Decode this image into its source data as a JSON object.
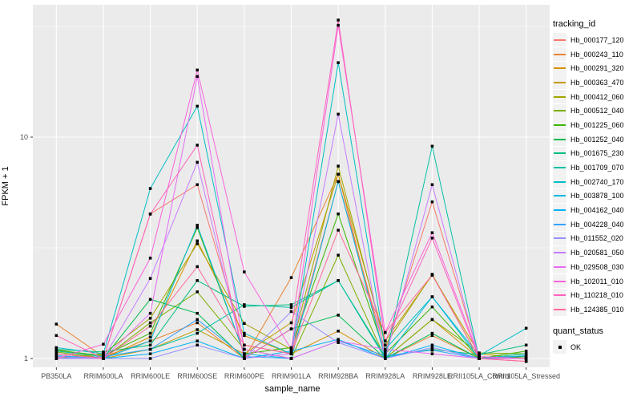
{
  "figure": {
    "y_axis": {
      "label": "FPKM + 1",
      "tick_labels": [
        "1",
        "10"
      ]
    },
    "x_axis": {
      "label": "sample_name"
    },
    "legend": {
      "title": "tracking_id"
    },
    "quant_status": {
      "title": "quant_status",
      "items": [
        {
          "label": "OK"
        }
      ]
    },
    "colors": {
      "panel_bg": "#EBEBEB",
      "grid": "#FFFFFF",
      "tick_text": "#4D4D4D",
      "tick_mark": "#333333",
      "point": "#000000",
      "legend_key_bg": "#F2F2F2"
    }
  },
  "chart_data": {
    "type": "line",
    "title": "",
    "xlabel": "sample_name",
    "ylabel": "FPKM + 1",
    "y_scale": "log10",
    "ylim": [
      0.91,
      39.5
    ],
    "y_major_ticks": [
      1,
      10
    ],
    "y_minor_ticks": [
      3.1623,
      31.623
    ],
    "grid": true,
    "legend_position": "right",
    "point_style": {
      "shape": "square",
      "color": "#000000",
      "size": 3.5,
      "meaning": "quant_status OK"
    },
    "x_categories": [
      "PB350LA",
      "RRIM600LA",
      "RRIM600LE",
      "RRIM600SE",
      "RRIM600PE",
      "RRIM901LA",
      "RRIM928BA",
      "RRIM928LA",
      "RRIM928LE",
      "RRII105LA_Control",
      "RRII105LA_Stressed"
    ],
    "series": [
      {
        "name": "Hb_000177_120",
        "color": "#F8766D",
        "values": [
          1.05,
          1.0,
          4.5,
          6.1,
          1.15,
          1.05,
          6.3,
          1.08,
          5.1,
          1.02,
          1.0
        ]
      },
      {
        "name": "Hb_000243_110",
        "color": "#EA8331",
        "values": [
          1.43,
          1.02,
          1.2,
          1.45,
          1.0,
          2.32,
          6.8,
          1.0,
          1.27,
          1.0,
          1.0
        ]
      },
      {
        "name": "Hb_000291_320",
        "color": "#D89000",
        "values": [
          1.1,
          1.0,
          1.25,
          3.4,
          1.27,
          1.05,
          1.33,
          1.0,
          1.5,
          1.0,
          1.02
        ]
      },
      {
        "name": "Hb_000363_470",
        "color": "#C09B00",
        "values": [
          1.02,
          1.0,
          1.1,
          1.35,
          1.05,
          1.45,
          6.8,
          1.2,
          2.38,
          1.05,
          1.0
        ]
      },
      {
        "name": "Hb_000412_060",
        "color": "#A3A500",
        "values": [
          1.0,
          1.05,
          1.52,
          3.3,
          1.44,
          1.1,
          7.4,
          1.15,
          2.4,
          1.0,
          1.0
        ]
      },
      {
        "name": "Hb_000512_040",
        "color": "#7CAE00",
        "values": [
          1.07,
          1.0,
          1.45,
          2.0,
          1.1,
          1.0,
          2.93,
          1.0,
          1.5,
          1.06,
          1.05
        ]
      },
      {
        "name": "Hb_001225_060",
        "color": "#39B600",
        "values": [
          1.09,
          1.03,
          1.3,
          3.9,
          1.05,
          1.12,
          4.5,
          1.05,
          1.71,
          1.0,
          1.08
        ]
      },
      {
        "name": "Hb_001252_040",
        "color": "#00BB4E",
        "values": [
          1.05,
          1.0,
          1.85,
          1.6,
          1.0,
          1.36,
          1.57,
          1.0,
          1.3,
          1.0,
          1.02
        ]
      },
      {
        "name": "Hb_001675_230",
        "color": "#00BF7D",
        "values": [
          1.1,
          1.07,
          1.15,
          2.25,
          1.72,
          1.75,
          2.25,
          1.02,
          1.1,
          1.04,
          1.15
        ]
      },
      {
        "name": "Hb_001709_070",
        "color": "#00C1A3",
        "values": [
          1.08,
          1.02,
          1.1,
          1.3,
          1.75,
          1.7,
          2.25,
          1.0,
          9.1,
          1.0,
          1.05
        ]
      },
      {
        "name": "Hb_002740_170",
        "color": "#00BFC4",
        "values": [
          1.12,
          1.05,
          5.86,
          13.8,
          1.3,
          1.05,
          21.7,
          1.1,
          1.9,
          1.03,
          1.37
        ]
      },
      {
        "name": "Hb_003878_100",
        "color": "#00BAE0",
        "values": [
          1.0,
          1.0,
          1.2,
          4.0,
          1.05,
          1.0,
          6.3,
          1.0,
          1.9,
          1.0,
          1.0
        ]
      },
      {
        "name": "Hb_004162_040",
        "color": "#00B0F6",
        "values": [
          1.03,
          1.0,
          1.05,
          1.2,
          1.0,
          1.08,
          1.22,
          1.0,
          1.15,
          1.0,
          1.03
        ]
      },
      {
        "name": "Hb_004228_040",
        "color": "#35A2FF",
        "values": [
          1.0,
          1.02,
          1.1,
          1.5,
          1.02,
          1.0,
          1.2,
          1.03,
          1.09,
          1.0,
          1.0
        ]
      },
      {
        "name": "Hb_011552_020",
        "color": "#9590FF",
        "values": [
          1.02,
          1.0,
          1.0,
          1.15,
          1.0,
          1.63,
          1.18,
          1.0,
          1.12,
          1.0,
          1.0
        ]
      },
      {
        "name": "Hb_020581_050",
        "color": "#C77CFF",
        "values": [
          1.0,
          1.0,
          2.3,
          7.7,
          1.0,
          1.05,
          12.7,
          1.0,
          6.1,
          1.0,
          1.0
        ]
      },
      {
        "name": "Hb_029508_030",
        "color": "#E76BF3",
        "values": [
          1.05,
          1.0,
          1.6,
          18.8,
          1.1,
          1.0,
          1.2,
          1.1,
          1.05,
          1.0,
          1.0
        ]
      },
      {
        "name": "Hb_102011_010",
        "color": "#FA62DB",
        "values": [
          1.0,
          1.16,
          2.84,
          20.1,
          2.46,
          1.1,
          32.0,
          1.31,
          3.7,
          1.02,
          1.0
        ]
      },
      {
        "name": "Hb_110218_010",
        "color": "#FF62BC",
        "values": [
          1.27,
          1.0,
          4.49,
          9.2,
          1.0,
          1.36,
          33.8,
          1.2,
          3.5,
          1.0,
          0.97
        ]
      },
      {
        "name": "Hb_124385_010",
        "color": "#FF6A98",
        "values": [
          1.05,
          1.0,
          1.4,
          2.6,
          1.15,
          1.05,
          3.8,
          1.31,
          2.38,
          1.0,
          0.97
        ]
      }
    ]
  }
}
